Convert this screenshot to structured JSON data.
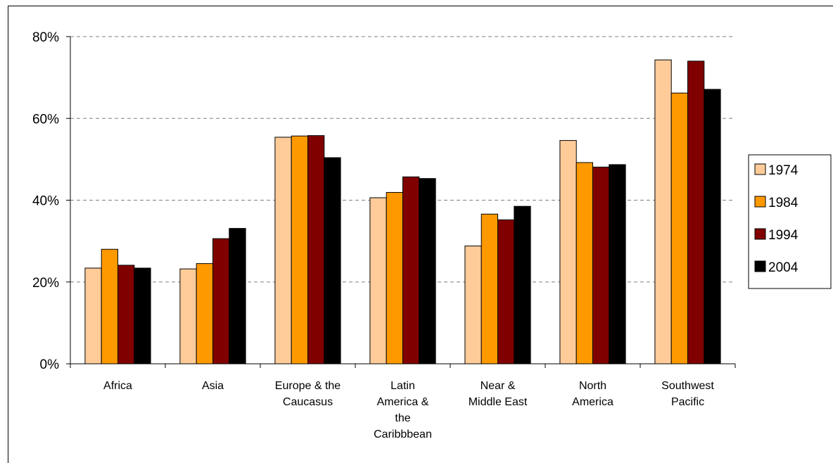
{
  "chart_data": {
    "type": "bar",
    "categories": [
      [
        "Africa"
      ],
      [
        "Asia"
      ],
      [
        "Europe & the",
        "Caucasus"
      ],
      [
        "Latin",
        "America &",
        "the",
        "Caribbbean"
      ],
      [
        "Near &",
        "Middle East"
      ],
      [
        "North",
        "America"
      ],
      [
        "Southwest",
        "Pacific"
      ]
    ],
    "series": [
      {
        "name": "1974",
        "color": "#FFCC99",
        "values": [
          23.4,
          23.2,
          55.4,
          40.6,
          28.8,
          54.6,
          74.3
        ]
      },
      {
        "name": "1984",
        "color": "#FF9900",
        "values": [
          28.0,
          24.5,
          55.7,
          41.9,
          36.6,
          49.2,
          66.2
        ]
      },
      {
        "name": "1994",
        "color": "#800000",
        "values": [
          24.1,
          30.6,
          55.8,
          45.7,
          35.2,
          48.1,
          74.0
        ]
      },
      {
        "name": "2004",
        "color": "#000000",
        "values": [
          23.4,
          33.1,
          50.4,
          45.3,
          38.5,
          48.7,
          67.1
        ]
      }
    ],
    "yticks": [
      "0%",
      "20%",
      "40%",
      "60%",
      "80%"
    ],
    "ytick_values": [
      0,
      20,
      40,
      60,
      80
    ],
    "ylim": [
      0,
      80
    ],
    "grid": true,
    "legend_position": "right",
    "title": "",
    "xlabel": "",
    "ylabel": ""
  }
}
